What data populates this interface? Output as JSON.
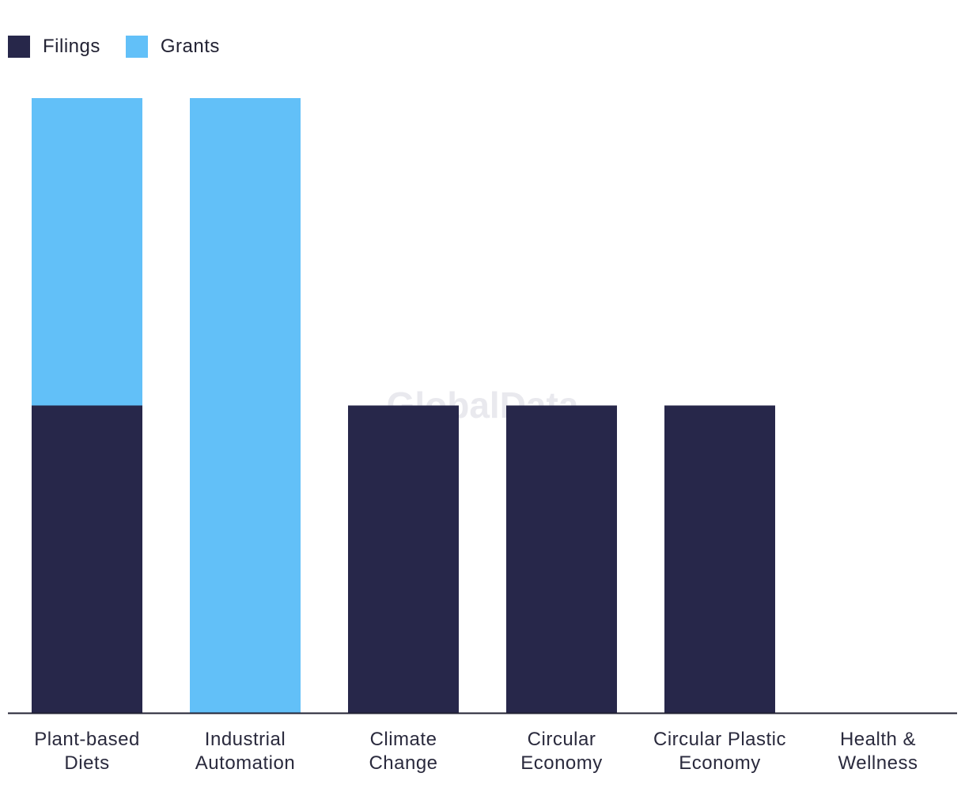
{
  "watermark": "GlobalData",
  "legend": [
    {
      "name": "Filings",
      "color": "#27274a"
    },
    {
      "name": "Grants",
      "color": "#62c0f8"
    }
  ],
  "chart_data": {
    "type": "bar",
    "stacked": true,
    "categories": [
      [
        "Plant-based",
        "Diets"
      ],
      [
        "Industrial",
        "Automation"
      ],
      [
        "Climate",
        "Change"
      ],
      [
        "Circular",
        "Economy"
      ],
      [
        "Circular Plastic",
        "Economy"
      ],
      [
        "Health &",
        "Wellness"
      ]
    ],
    "series": [
      {
        "name": "Filings",
        "color": "#27274a",
        "values": [
          1,
          0,
          1,
          1,
          1,
          0
        ]
      },
      {
        "name": "Grants",
        "color": "#62c0f8",
        "values": [
          1,
          2,
          0,
          0,
          0,
          0
        ]
      }
    ],
    "ylim": [
      0,
      2
    ],
    "grid": false,
    "legend_position": "top-left"
  }
}
